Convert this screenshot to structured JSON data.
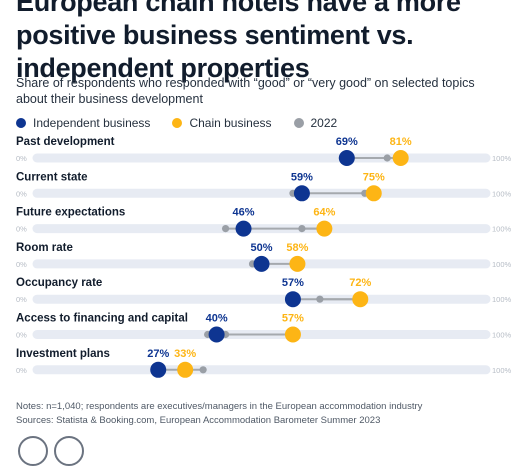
{
  "title": "European chain hotels have a more positive business sentiment vs. independent properties",
  "subtitle": "Share of respondents who responded with “good” or “very good” on selected topics about their business development",
  "legend": {
    "independent": "Independent business",
    "chain": "Chain business",
    "previous": "2022"
  },
  "colors": {
    "independent": "#0e3591",
    "chain": "#fdb515",
    "previous": "#9a9fa6",
    "track": "#e7ebf3",
    "connector": "#a5a9ae"
  },
  "notes": {
    "line1": "Notes: n=1,040; respondents are executives/managers in the European accommodation industry",
    "line2": "Sources: Statista & Booking.com, European Accommodation Barometer Summer 2023"
  },
  "chart_data": {
    "type": "dumbbell",
    "xlim": [
      0,
      100
    ],
    "axis_min_label": "0%",
    "axis_max_label": "100%",
    "categories": [
      "Past development",
      "Current state",
      "Future expectations",
      "Room rate",
      "Occupancy rate",
      "Access to financing and capital",
      "Investment plans"
    ],
    "series": [
      {
        "name": "Independent business",
        "values": [
          69,
          59,
          46,
          50,
          57,
          40,
          27
        ],
        "labels": [
          "69%",
          "59%",
          "46%",
          "50%",
          "57%",
          "40%",
          "27%"
        ]
      },
      {
        "name": "Chain business",
        "values": [
          81,
          75,
          64,
          58,
          72,
          57,
          33
        ],
        "labels": [
          "81%",
          "75%",
          "64%",
          "58%",
          "72%",
          "57%",
          "33%"
        ]
      },
      {
        "name": "2022",
        "independent": [
          68,
          57,
          42,
          48,
          57,
          38,
          27
        ],
        "chain": [
          78,
          73,
          59,
          58,
          63,
          42,
          37
        ]
      }
    ]
  }
}
